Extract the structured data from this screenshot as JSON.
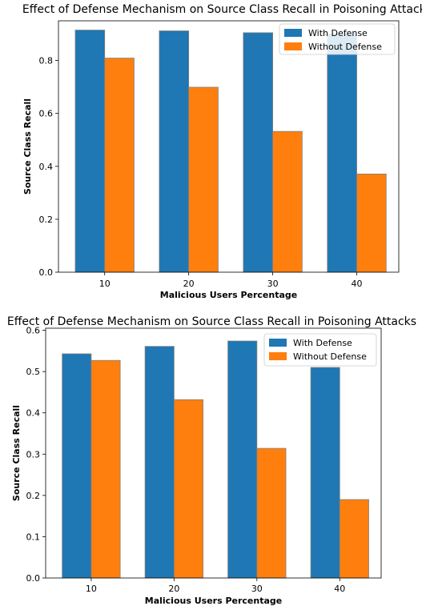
{
  "chart_data": [
    {
      "type": "bar",
      "title": "Effect of Defense Mechanism on Source Class Recall in Poisoning Attacks",
      "xlabel": "Malicious Users Percentage",
      "ylabel": "Source Class Recall",
      "categories": [
        "10",
        "20",
        "30",
        "40"
      ],
      "ylim": [
        0,
        0.95
      ],
      "yticks": [
        "0.0",
        "0.2",
        "0.4",
        "0.6",
        "0.8"
      ],
      "grid": false,
      "legend_position": "top-right",
      "series": [
        {
          "name": "With Defense",
          "color": "#1f77b4",
          "values": [
            0.915,
            0.912,
            0.905,
            0.9
          ]
        },
        {
          "name": "Without Defense",
          "color": "#ff7f0e",
          "values": [
            0.809,
            0.699,
            0.532,
            0.371
          ]
        }
      ]
    },
    {
      "type": "bar",
      "title": "Effect of Defense Mechanism on Source Class Recall in Poisoning Attacks",
      "xlabel": "Malicious Users Percentage",
      "ylabel": "Source Class Recall",
      "categories": [
        "10",
        "20",
        "30",
        "40"
      ],
      "ylim": [
        0,
        0.605
      ],
      "yticks": [
        "0.0",
        "0.1",
        "0.2",
        "0.3",
        "0.4",
        "0.5",
        "0.6"
      ],
      "grid": false,
      "legend_position": "top-right",
      "series": [
        {
          "name": "With Defense",
          "color": "#1f77b4",
          "values": [
            0.543,
            0.561,
            0.574,
            0.51
          ]
        },
        {
          "name": "Without Defense",
          "color": "#ff7f0e",
          "values": [
            0.527,
            0.432,
            0.314,
            0.19
          ]
        }
      ]
    }
  ]
}
